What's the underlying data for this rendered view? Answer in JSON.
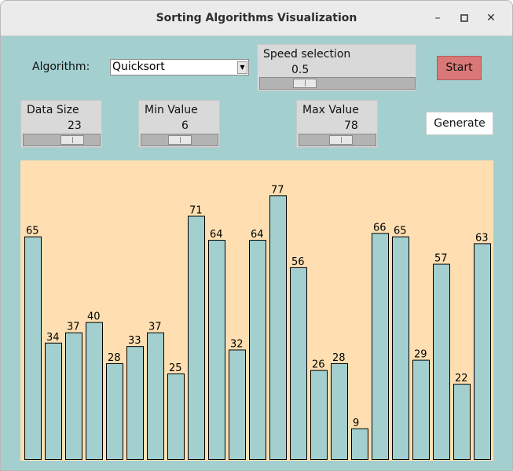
{
  "window": {
    "title": "Sorting Algorithms Visualization",
    "controls": {
      "minimize": "–",
      "maximize": "□",
      "close": "✕"
    }
  },
  "algorithm": {
    "label": "Algorithm:",
    "selected": "Quicksort",
    "dropdown_arrow": "▼"
  },
  "speed": {
    "label": "Speed selection",
    "value": "0.5",
    "fraction": 0.25
  },
  "start_button": {
    "label": "Start",
    "color": "#d97876"
  },
  "data_size": {
    "label": "Data Size",
    "value": "23",
    "fraction": 0.7
  },
  "min_value": {
    "label": "Min Value",
    "value": "6",
    "fraction": 0.5
  },
  "max_value": {
    "label": "Max Value",
    "value": "78",
    "fraction": 0.56
  },
  "generate_button": {
    "label": "Generate"
  },
  "colors": {
    "background": "#a3cfcf",
    "canvas": "#ffdfb1",
    "bar": "#a3cfcf",
    "bar_outline": "#000000"
  },
  "chart_data": {
    "type": "bar",
    "values": [
      65,
      34,
      37,
      40,
      28,
      33,
      37,
      25,
      71,
      64,
      32,
      64,
      77,
      56,
      26,
      28,
      9,
      66,
      65,
      29,
      57,
      22,
      63
    ],
    "max_reference": 78
  }
}
